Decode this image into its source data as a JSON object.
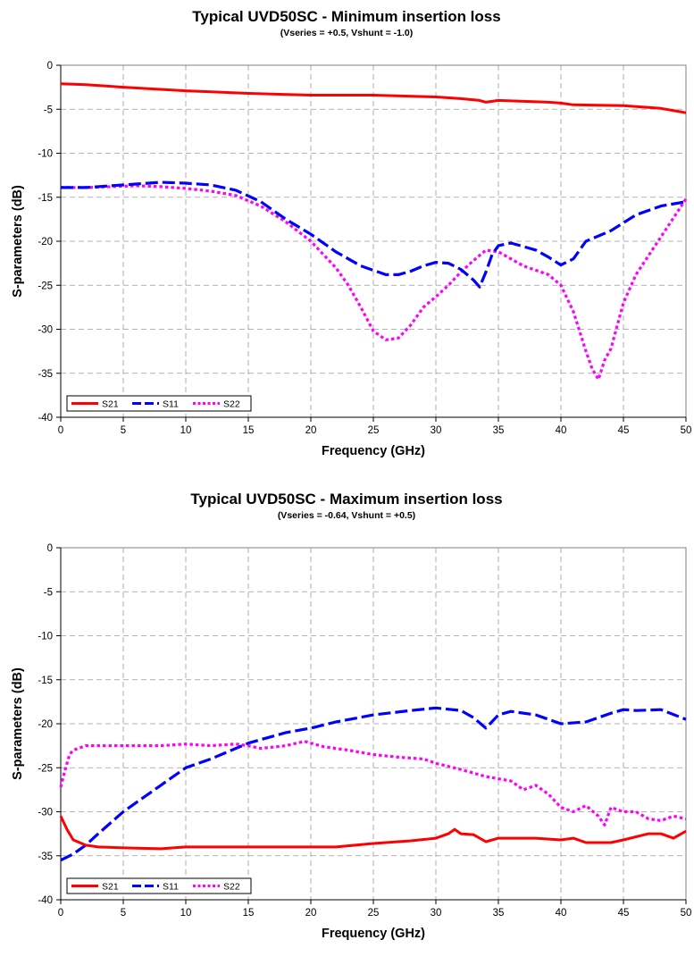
{
  "chart_data": [
    {
      "type": "line",
      "title": "Typical UVD50SC - Minimum insertion loss",
      "subtitle": "(Vseries = +0.5, Vshunt = -1.0)",
      "xlabel": "Frequency (GHz)",
      "ylabel": "S-parameters (dB)",
      "xlim": [
        0,
        50
      ],
      "ylim": [
        -40,
        0
      ],
      "xticks": [
        0,
        5,
        10,
        15,
        20,
        25,
        30,
        35,
        40,
        45,
        50
      ],
      "yticks": [
        0,
        -5,
        -10,
        -15,
        -20,
        -25,
        -30,
        -35,
        -40
      ],
      "grid": true,
      "legend_position": "bottom-left",
      "series": [
        {
          "name": "S21",
          "color": "#ff0000",
          "style": "solid",
          "x": [
            0,
            2,
            5,
            10,
            15,
            20,
            25,
            30,
            32,
            33.5,
            34,
            35,
            37,
            39,
            40,
            41,
            45,
            48,
            50
          ],
          "y": [
            -2.1,
            -2.2,
            -2.5,
            -2.9,
            -3.2,
            -3.4,
            -3.4,
            -3.6,
            -3.8,
            -4.0,
            -4.2,
            -4.0,
            -4.1,
            -4.2,
            -4.3,
            -4.5,
            -4.6,
            -4.9,
            -5.4
          ]
        },
        {
          "name": "S11",
          "color": "#0000ff",
          "style": "dash",
          "x": [
            0,
            2,
            4,
            6,
            8,
            10,
            12,
            14,
            16,
            18,
            20,
            22,
            24,
            26,
            27,
            28,
            29,
            30,
            31,
            32,
            33,
            33.5,
            34,
            34.5,
            35,
            36,
            37,
            38,
            39,
            40,
            41,
            42,
            44,
            46,
            48,
            50
          ],
          "y": [
            -13.9,
            -13.9,
            -13.7,
            -13.5,
            -13.3,
            -13.4,
            -13.6,
            -14.2,
            -15.5,
            -17.5,
            -19.2,
            -21.2,
            -22.8,
            -23.8,
            -23.8,
            -23.4,
            -22.8,
            -22.4,
            -22.5,
            -23.2,
            -24.4,
            -25.2,
            -23.5,
            -21.5,
            -20.5,
            -20.2,
            -20.6,
            -21.0,
            -21.8,
            -22.7,
            -22.0,
            -20.0,
            -18.8,
            -17.0,
            -16.0,
            -15.5
          ]
        },
        {
          "name": "S22",
          "color": "#ff00ff",
          "style": "dot",
          "x": [
            0,
            2,
            4,
            6,
            8,
            10,
            12,
            14,
            16,
            18,
            20,
            22,
            23,
            24,
            25,
            26,
            27,
            28,
            29,
            30,
            31,
            32,
            33,
            34,
            35,
            36,
            37,
            38,
            39,
            40,
            41,
            42,
            42.5,
            43,
            43.5,
            44,
            45,
            46,
            48,
            50
          ],
          "y": [
            -13.9,
            -13.9,
            -13.8,
            -13.7,
            -13.8,
            -14.0,
            -14.3,
            -14.8,
            -16.0,
            -17.8,
            -20.0,
            -23.0,
            -25.0,
            -27.5,
            -30.2,
            -31.2,
            -31.0,
            -29.5,
            -27.5,
            -26.3,
            -25.0,
            -23.5,
            -22.2,
            -21.0,
            -21.2,
            -22.0,
            -22.8,
            -23.3,
            -23.8,
            -25.0,
            -28.0,
            -32.5,
            -34.5,
            -35.7,
            -33.5,
            -32.2,
            -27.0,
            -23.8,
            -19.5,
            -15.2
          ]
        }
      ],
      "legend": [
        "S21",
        "S11",
        "S22"
      ]
    },
    {
      "type": "line",
      "title": "Typical UVD50SC - Maximum insertion loss",
      "subtitle": "(Vseries = -0.64, Vshunt = +0.5)",
      "xlabel": "Frequency (GHz)",
      "ylabel": "S-parameters (dB)",
      "xlim": [
        0,
        50
      ],
      "ylim": [
        -40,
        0
      ],
      "xticks": [
        0,
        5,
        10,
        15,
        20,
        25,
        30,
        35,
        40,
        45,
        50
      ],
      "yticks": [
        0,
        -5,
        -10,
        -15,
        -20,
        -25,
        -30,
        -35,
        -40
      ],
      "grid": true,
      "legend_position": "bottom-left",
      "series": [
        {
          "name": "S21",
          "color": "#ff0000",
          "style": "solid",
          "x": [
            0,
            0.5,
            1,
            2,
            3,
            5,
            8,
            10,
            15,
            20,
            22,
            25,
            28,
            30,
            31,
            31.5,
            32,
            33,
            34,
            35,
            38,
            40,
            41,
            42,
            44,
            45,
            47,
            48,
            49,
            50
          ],
          "y": [
            -30.5,
            -32.0,
            -33.2,
            -33.8,
            -34.0,
            -34.1,
            -34.2,
            -34.0,
            -34.0,
            -34.0,
            -34.0,
            -33.6,
            -33.3,
            -33.0,
            -32.5,
            -32.0,
            -32.5,
            -32.6,
            -33.4,
            -33.0,
            -33.0,
            -33.2,
            -33.0,
            -33.5,
            -33.5,
            -33.2,
            -32.5,
            -32.5,
            -33.0,
            -32.2
          ]
        },
        {
          "name": "S11",
          "color": "#0000ff",
          "style": "dash",
          "x": [
            0,
            1,
            2,
            3,
            5,
            8,
            10,
            12,
            15,
            18,
            20,
            22,
            25,
            28,
            30,
            32,
            33,
            34,
            35,
            36,
            38,
            40,
            42,
            44,
            45,
            46,
            48,
            50
          ],
          "y": [
            -35.5,
            -34.8,
            -33.8,
            -32.5,
            -30.0,
            -27.0,
            -25.0,
            -24.0,
            -22.2,
            -21.0,
            -20.5,
            -19.8,
            -19.0,
            -18.5,
            -18.2,
            -18.5,
            -19.3,
            -20.5,
            -19.0,
            -18.6,
            -19.0,
            -20.0,
            -19.8,
            -18.8,
            -18.4,
            -18.5,
            -18.4,
            -19.5
          ]
        },
        {
          "name": "S22",
          "color": "#ff00ff",
          "style": "dot",
          "x": [
            0,
            0.3,
            0.7,
            1,
            2,
            5,
            8,
            10,
            12,
            14,
            15,
            16,
            18,
            19.5,
            21,
            23,
            25,
            27,
            29,
            30,
            32,
            34,
            36,
            37,
            38,
            39,
            40,
            41,
            42,
            43,
            43.5,
            44,
            45,
            46,
            47,
            48,
            49,
            50
          ],
          "y": [
            -27.2,
            -25.5,
            -23.5,
            -23.0,
            -22.5,
            -22.5,
            -22.5,
            -22.3,
            -22.5,
            -22.3,
            -22.5,
            -22.8,
            -22.5,
            -22.0,
            -22.6,
            -23.0,
            -23.5,
            -23.8,
            -24.0,
            -24.5,
            -25.2,
            -26.0,
            -26.5,
            -27.5,
            -27.0,
            -28.0,
            -29.5,
            -30.0,
            -29.3,
            -30.5,
            -31.5,
            -29.5,
            -30.0,
            -30.0,
            -30.8,
            -31.0,
            -30.5,
            -30.8
          ]
        }
      ],
      "legend": [
        "S21",
        "S11",
        "S22"
      ]
    }
  ]
}
